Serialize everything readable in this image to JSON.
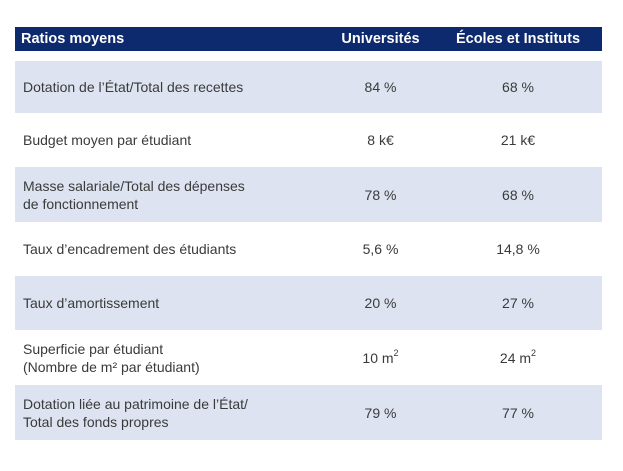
{
  "table": {
    "header": {
      "label": "Ratios moyens",
      "col1": "Universités",
      "col2": "Écoles et Instituts"
    },
    "rows": [
      {
        "label_lines": [
          "Dotation de l’État/Total des recettes"
        ],
        "universites": "84 %",
        "ecoles": "68 %"
      },
      {
        "label_lines": [
          "Budget moyen par étudiant"
        ],
        "universites": "8 k€",
        "ecoles": "21 k€"
      },
      {
        "label_lines": [
          "Masse salariale/Total des dépenses",
          "de fonctionnement"
        ],
        "universites": "78 %",
        "ecoles": "68 %"
      },
      {
        "label_lines": [
          "Taux d’encadrement des étudiants"
        ],
        "universites": "5,6 %",
        "ecoles": "14,8 %"
      },
      {
        "label_lines": [
          "Taux d’amortissement"
        ],
        "universites": "20 %",
        "ecoles": "27 %"
      },
      {
        "label_lines": [
          "Superficie par étudiant",
          "(Nombre de m² par étudiant)"
        ],
        "universites_value": "10 m",
        "universites_sup": "2",
        "ecoles_value": "24 m",
        "ecoles_sup": "2"
      },
      {
        "label_lines": [
          "Dotation liée au patrimoine de l’État/",
          "Total des fonds propres"
        ],
        "universites": "79 %",
        "ecoles": "77 %"
      }
    ]
  },
  "colors": {
    "header_bg": "#0e2a6e",
    "header_text": "#ffffff",
    "shaded_row_bg": "#dde3f0",
    "text": "#3a3a3a"
  }
}
